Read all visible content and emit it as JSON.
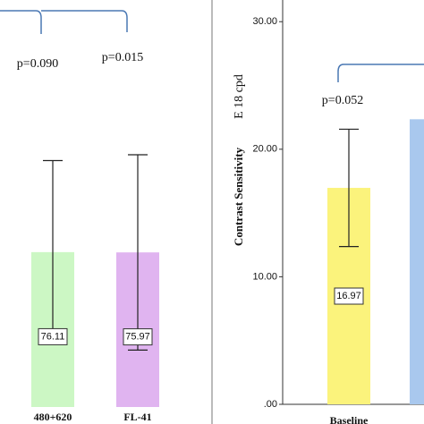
{
  "chart_data": [
    {
      "type": "bar",
      "categories": [
        "480+620",
        "FL-41"
      ],
      "values": [
        76.11,
        75.97
      ],
      "errors": [
        45,
        48
      ],
      "colors": [
        "#ccf7c4",
        "#e0b4f0"
      ],
      "ylim": [
        0,
        200
      ],
      "annotations": [
        "p=0.090",
        "p=0.015"
      ]
    },
    {
      "type": "bar",
      "categories": [
        "Baseline",
        null
      ],
      "values": [
        16.97,
        22.35
      ],
      "errors": [
        4.6,
        null
      ],
      "colors": [
        "#fbf37c",
        "#a9c8ee"
      ],
      "ylim": [
        0,
        31.7
      ],
      "yticks": [
        {
          "value": 0,
          "label": ".00"
        },
        {
          "value": 10,
          "label": "10.00"
        },
        {
          "value": 20,
          "label": "20.00"
        },
        {
          "value": 30,
          "label": "30.00"
        }
      ],
      "y_label": "Contrast Sensitivity",
      "y_label_2": "E 18 cpd",
      "annotations": [
        "p=0.052"
      ]
    }
  ]
}
